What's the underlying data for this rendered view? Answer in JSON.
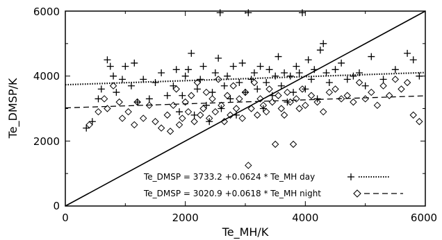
{
  "chart_data": {
    "type": "scatter",
    "xlabel": "Te_MH/K",
    "ylabel": "Te_DMSP/K",
    "xlim": [
      0,
      6000
    ],
    "ylim": [
      0,
      6000
    ],
    "x_ticks": [
      "0",
      "2000",
      "4000",
      "6000"
    ],
    "y_ticks": [
      "0",
      "2000",
      "4000",
      "6000"
    ],
    "legend_placement": "bottom-right",
    "grid": false,
    "colors": {
      "foreground": "#000000",
      "background": "#ffffff"
    },
    "reference_line": {
      "style": "solid",
      "x": [
        0,
        6000
      ],
      "y": [
        0,
        6000
      ]
    },
    "fits": [
      {
        "legend": "Te_DMSP = 3733.2 +0.0624 * Te_MH day",
        "intercept": 3733.2,
        "slope": 0.0624,
        "line_style": "dotted",
        "marker": "plus"
      },
      {
        "legend": "Te_DMSP = 3020.9 +0.0618 * Te_MH night",
        "intercept": 3020.9,
        "slope": 0.0618,
        "line_style": "dashed",
        "marker": "diamond"
      }
    ],
    "series": [
      {
        "marker": "plus",
        "points": [
          [
            350,
            2400
          ],
          [
            450,
            2600
          ],
          [
            550,
            3300
          ],
          [
            600,
            3600
          ],
          [
            700,
            4500
          ],
          [
            750,
            4300
          ],
          [
            800,
            4000
          ],
          [
            850,
            3500
          ],
          [
            950,
            3900
          ],
          [
            1000,
            4300
          ],
          [
            1100,
            3700
          ],
          [
            1150,
            4400
          ],
          [
            1200,
            3200
          ],
          [
            1300,
            3900
          ],
          [
            1400,
            3300
          ],
          [
            1500,
            3800
          ],
          [
            1600,
            4100
          ],
          [
            1700,
            3400
          ],
          [
            1800,
            3700
          ],
          [
            1850,
            4200
          ],
          [
            1900,
            2900
          ],
          [
            1950,
            3400
          ],
          [
            2000,
            4000
          ],
          [
            2050,
            4200
          ],
          [
            2100,
            4700
          ],
          [
            2150,
            2800
          ],
          [
            2200,
            3600
          ],
          [
            2250,
            3900
          ],
          [
            2300,
            4300
          ],
          [
            2350,
            3100
          ],
          [
            2400,
            2600
          ],
          [
            2450,
            3500
          ],
          [
            2500,
            4100
          ],
          [
            2550,
            4550
          ],
          [
            2580,
            5950
          ],
          [
            2600,
            3000
          ],
          [
            2650,
            3700
          ],
          [
            2700,
            4000
          ],
          [
            2750,
            3300
          ],
          [
            2800,
            4300
          ],
          [
            2850,
            2800
          ],
          [
            2900,
            3800
          ],
          [
            2950,
            4400
          ],
          [
            3000,
            3500
          ],
          [
            3050,
            5950
          ],
          [
            3100,
            3900
          ],
          [
            3150,
            4100
          ],
          [
            3200,
            3600
          ],
          [
            3250,
            4300
          ],
          [
            3300,
            3000
          ],
          [
            3350,
            3800
          ],
          [
            3400,
            4200
          ],
          [
            3450,
            3400
          ],
          [
            3500,
            4000
          ],
          [
            3550,
            4600
          ],
          [
            3600,
            3700
          ],
          [
            3650,
            4100
          ],
          [
            3700,
            3200
          ],
          [
            3750,
            4000
          ],
          [
            3800,
            3500
          ],
          [
            3850,
            4300
          ],
          [
            3900,
            4100
          ],
          [
            3950,
            5950
          ],
          [
            4000,
            3600
          ],
          [
            4050,
            4500
          ],
          [
            4100,
            3900
          ],
          [
            4150,
            4200
          ],
          [
            4200,
            3300
          ],
          [
            4250,
            4800
          ],
          [
            4300,
            5000
          ],
          [
            4350,
            4100
          ],
          [
            4400,
            3800
          ],
          [
            4500,
            4200
          ],
          [
            4600,
            4400
          ],
          [
            4700,
            3900
          ],
          [
            4800,
            4000
          ],
          [
            4900,
            4100
          ],
          [
            5000,
            3700
          ],
          [
            5100,
            4600
          ],
          [
            5300,
            3900
          ],
          [
            5500,
            4200
          ],
          [
            5700,
            4700
          ],
          [
            5800,
            4500
          ],
          [
            5900,
            4000
          ]
        ]
      },
      {
        "marker": "diamond",
        "points": [
          [
            400,
            2500
          ],
          [
            550,
            2900
          ],
          [
            650,
            3300
          ],
          [
            700,
            3000
          ],
          [
            800,
            3700
          ],
          [
            900,
            3200
          ],
          [
            950,
            2700
          ],
          [
            1050,
            2900
          ],
          [
            1150,
            2500
          ],
          [
            1200,
            3200
          ],
          [
            1300,
            2700
          ],
          [
            1400,
            3100
          ],
          [
            1500,
            2600
          ],
          [
            1600,
            2400
          ],
          [
            1700,
            2800
          ],
          [
            1750,
            2300
          ],
          [
            1800,
            3100
          ],
          [
            1850,
            3600
          ],
          [
            1900,
            2500
          ],
          [
            1950,
            2700
          ],
          [
            2000,
            3200
          ],
          [
            2050,
            2900
          ],
          [
            2100,
            3400
          ],
          [
            2150,
            2600
          ],
          [
            2200,
            3800
          ],
          [
            2250,
            2800
          ],
          [
            2300,
            3000
          ],
          [
            2350,
            3500
          ],
          [
            2400,
            2700
          ],
          [
            2450,
            3300
          ],
          [
            2500,
            2900
          ],
          [
            2550,
            3900
          ],
          [
            2600,
            3100
          ],
          [
            2650,
            2600
          ],
          [
            2700,
            3400
          ],
          [
            2750,
            2800
          ],
          [
            2800,
            3700
          ],
          [
            2850,
            3000
          ],
          [
            2900,
            3300
          ],
          [
            2950,
            2700
          ],
          [
            3000,
            3500
          ],
          [
            3050,
            1250
          ],
          [
            3100,
            3000
          ],
          [
            3150,
            3800
          ],
          [
            3200,
            2800
          ],
          [
            3250,
            3300
          ],
          [
            3300,
            3100
          ],
          [
            3350,
            2900
          ],
          [
            3400,
            3600
          ],
          [
            3450,
            3200
          ],
          [
            3500,
            1900
          ],
          [
            3550,
            3400
          ],
          [
            3600,
            3000
          ],
          [
            3650,
            2800
          ],
          [
            3700,
            3500
          ],
          [
            3750,
            3200
          ],
          [
            3800,
            1900
          ],
          [
            3850,
            3300
          ],
          [
            3900,
            3000
          ],
          [
            3950,
            3600
          ],
          [
            4000,
            3100
          ],
          [
            4100,
            3400
          ],
          [
            4200,
            3200
          ],
          [
            4300,
            2900
          ],
          [
            4400,
            3500
          ],
          [
            4500,
            3600
          ],
          [
            4600,
            3300
          ],
          [
            4700,
            3400
          ],
          [
            4800,
            3200
          ],
          [
            4900,
            3800
          ],
          [
            5000,
            3300
          ],
          [
            5100,
            3500
          ],
          [
            5200,
            3100
          ],
          [
            5300,
            3700
          ],
          [
            5400,
            3400
          ],
          [
            5500,
            3900
          ],
          [
            5600,
            3600
          ],
          [
            5700,
            3800
          ],
          [
            5800,
            2800
          ],
          [
            5900,
            2600
          ]
        ]
      }
    ]
  }
}
